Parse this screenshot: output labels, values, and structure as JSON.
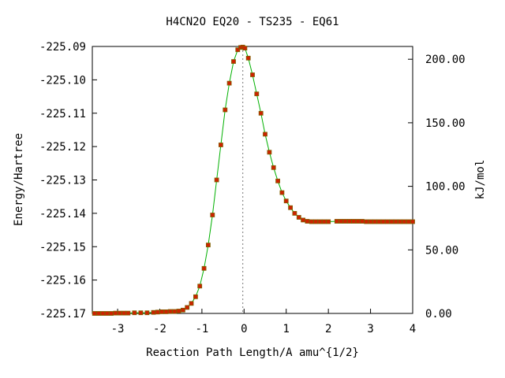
{
  "chart_data": {
    "type": "line",
    "title": "H4CN2O   EQ20 - TS235 - EQ61",
    "xlabel": "Reaction Path Length/A amu^{1/2}",
    "ylabel": "Energy/Hartree",
    "ylabel_right": "kJ/mol",
    "xlim": [
      -3.6,
      4.0
    ],
    "ylim": [
      -225.17,
      -225.09
    ],
    "right_axis_zero_energy": -225.17,
    "hartree_to_kjmol": 2625.5,
    "x_ticks": [
      {
        "value": -3,
        "label": "-3"
      },
      {
        "value": -2,
        "label": "-2"
      },
      {
        "value": -1,
        "label": "-1"
      },
      {
        "value": 0,
        "label": "0"
      },
      {
        "value": 1,
        "label": "1"
      },
      {
        "value": 2,
        "label": "2"
      },
      {
        "value": 3,
        "label": "3"
      },
      {
        "value": 4,
        "label": "4"
      }
    ],
    "y_ticks": [
      {
        "value": -225.09,
        "label": "-225.09"
      },
      {
        "value": -225.1,
        "label": "-225.10"
      },
      {
        "value": -225.11,
        "label": "-225.11"
      },
      {
        "value": -225.12,
        "label": "-225.12"
      },
      {
        "value": -225.13,
        "label": "-225.13"
      },
      {
        "value": -225.14,
        "label": "-225.14"
      },
      {
        "value": -225.15,
        "label": "-225.15"
      },
      {
        "value": -225.16,
        "label": "-225.16"
      },
      {
        "value": -225.17,
        "label": "-225.17"
      }
    ],
    "y2_ticks": [
      {
        "value": 0,
        "label": "0.00"
      },
      {
        "value": 50,
        "label": "50.00"
      },
      {
        "value": 100,
        "label": "100.00"
      },
      {
        "value": 150,
        "label": "150.00"
      },
      {
        "value": 200,
        "label": "200.00"
      }
    ],
    "ts_marker_x": -0.03,
    "line_color": "#00b000",
    "marker_color": "#cc2200",
    "marker_edge_color": "#806000",
    "series": [
      {
        "x": [
          -3.55,
          -3.45,
          -3.35,
          -3.25,
          -3.15,
          -3.05,
          -2.95,
          -2.85,
          -2.75,
          -2.6,
          -2.45,
          -2.3,
          -2.15,
          -2.05,
          -1.95,
          -1.85,
          -1.75,
          -1.65,
          -1.55,
          -1.45,
          -1.35,
          -1.25,
          -1.15,
          -1.05,
          -0.95,
          -0.85,
          -0.75,
          -0.65,
          -0.55,
          -0.45,
          -0.35,
          -0.25,
          -0.15,
          -0.08,
          -0.03,
          0.02,
          0.1,
          0.2,
          0.3,
          0.4,
          0.5,
          0.6,
          0.7,
          0.8,
          0.9,
          1.0,
          1.1,
          1.2,
          1.3,
          1.4,
          1.5,
          1.6,
          1.7,
          1.8,
          1.9,
          2.0,
          2.2,
          2.3,
          2.4,
          2.5,
          2.6,
          2.7,
          2.8,
          2.9,
          3.0,
          3.1,
          3.2,
          3.3,
          3.4,
          3.5,
          3.6,
          3.7,
          3.8,
          3.9,
          4.0
        ],
        "y": [
          -225.17,
          -225.17,
          -225.17,
          -225.17,
          -225.17,
          -225.1699,
          -225.1699,
          -225.1699,
          -225.1699,
          -225.1698,
          -225.1698,
          -225.1698,
          -225.1697,
          -225.1696,
          -225.1695,
          -225.1695,
          -225.1694,
          -225.1694,
          -225.1693,
          -225.169,
          -225.1682,
          -225.167,
          -225.165,
          -225.1618,
          -225.1565,
          -225.1495,
          -225.1405,
          -225.13,
          -225.1195,
          -225.109,
          -225.101,
          -225.0945,
          -225.091,
          -225.0903,
          -225.0902,
          -225.0905,
          -225.0935,
          -225.0985,
          -225.1042,
          -225.11,
          -225.1163,
          -225.1217,
          -225.1263,
          -225.1303,
          -225.1338,
          -225.1363,
          -225.1383,
          -225.14,
          -225.1412,
          -225.142,
          -225.1424,
          -225.1425,
          -225.1425,
          -225.1425,
          -225.1425,
          -225.1425,
          -225.1424,
          -225.1424,
          -225.1424,
          -225.1424,
          -225.1424,
          -225.1424,
          -225.1424,
          -225.1425,
          -225.1425,
          -225.1425,
          -225.1425,
          -225.1425,
          -225.1425,
          -225.1425,
          -225.1425,
          -225.1425,
          -225.1425,
          -225.1425,
          -225.1425
        ]
      }
    ]
  }
}
